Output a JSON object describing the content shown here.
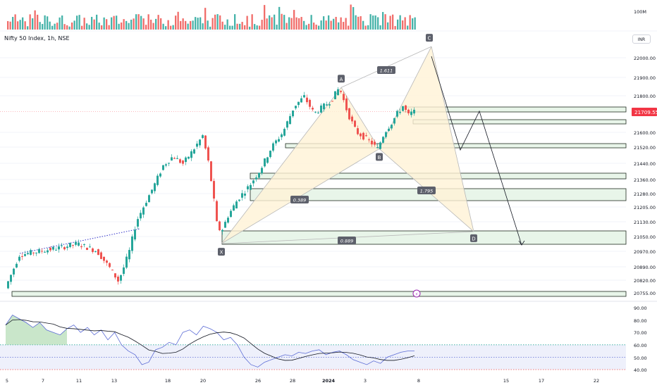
{
  "symbol_label": "Nifty 50 Index, 1h, NSE",
  "currency": "INR",
  "volume_scale_label": "100M",
  "last_price": "21709.55",
  "colors": {
    "up": "#26a69a",
    "down": "#ef5350",
    "pattern_fill": "#fff3d6",
    "pattern_stroke": "#b7b7b7",
    "zone_fill": "#e8f5e9",
    "zone_stroke": "#1f2a1f",
    "price_tag": "#f23645",
    "rsi_line": "#5b6bd5",
    "rsi_ma": "#131722",
    "rsi_band": "#eef0fb",
    "trendline": "#3030c8"
  },
  "chart_data": {
    "type": "candlestick",
    "price_axis": {
      "ticks": [
        "22000.00",
        "21900.00",
        "21800.00",
        "21709.55",
        "21600.00",
        "21520.00",
        "21440.00",
        "21360.00",
        "21280.00",
        "21205.00",
        "21130.00",
        "21050.00",
        "20970.00",
        "20890.00",
        "20820.00",
        "20755.00"
      ]
    },
    "x_ticks": [
      "5",
      "7",
      "11",
      "13",
      "18",
      "20",
      "26",
      "28",
      "2024",
      "3",
      "8",
      "15",
      "17",
      "22"
    ],
    "harmonic_points": [
      {
        "label": "X",
        "price": 21000
      },
      {
        "label": "A",
        "price": 21840
      },
      {
        "label": "B",
        "price": 21510
      },
      {
        "label": "C",
        "price": 22060
      },
      {
        "label": "D",
        "price": 21065
      }
    ],
    "ratio_labels": [
      "1.611",
      "0.389",
      "1.795",
      "0.889"
    ],
    "rsi": {
      "ticks": [
        "90.00",
        "80.00",
        "70.00",
        "60.00",
        "50.00",
        "40.00"
      ],
      "levels": [
        60,
        50,
        40
      ],
      "values": [
        76,
        84,
        81,
        78,
        74,
        78,
        72,
        70,
        68,
        73,
        76,
        70,
        74,
        68,
        72,
        64,
        70,
        60,
        55,
        52,
        44,
        46,
        56,
        58,
        62,
        60,
        70,
        72,
        68,
        75,
        73,
        70,
        64,
        66,
        60,
        50,
        44,
        42,
        46,
        48,
        50,
        52,
        51,
        54,
        53,
        55,
        56,
        52,
        54,
        55,
        52,
        48,
        46,
        44,
        47,
        45,
        50,
        52,
        54,
        55,
        55
      ]
    }
  }
}
